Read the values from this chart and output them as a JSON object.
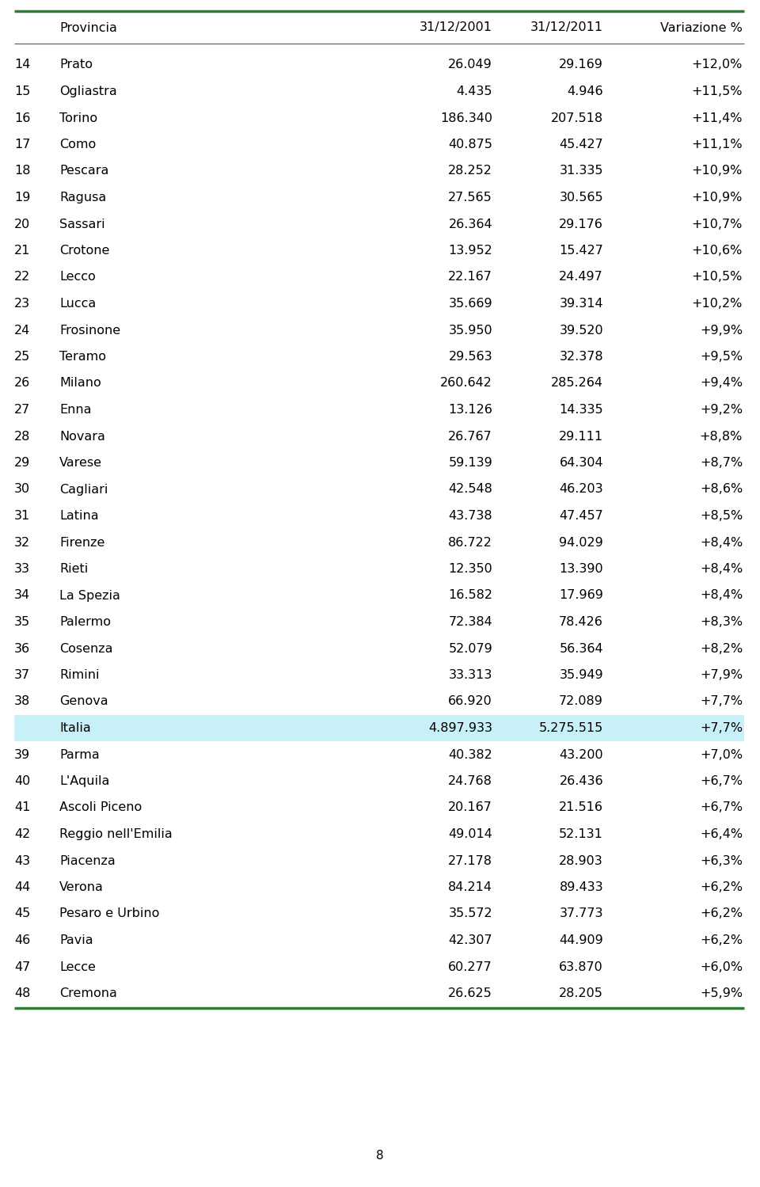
{
  "header": [
    "",
    "Provincia",
    "31/12/2001",
    "31/12/2011",
    "Variazione %"
  ],
  "rows": [
    [
      "14",
      "Prato",
      "26.049",
      "29.169",
      "+12,0%"
    ],
    [
      "15",
      "Ogliastra",
      "4.435",
      "4.946",
      "+11,5%"
    ],
    [
      "16",
      "Torino",
      "186.340",
      "207.518",
      "+11,4%"
    ],
    [
      "17",
      "Como",
      "40.875",
      "45.427",
      "+11,1%"
    ],
    [
      "18",
      "Pescara",
      "28.252",
      "31.335",
      "+10,9%"
    ],
    [
      "19",
      "Ragusa",
      "27.565",
      "30.565",
      "+10,9%"
    ],
    [
      "20",
      "Sassari",
      "26.364",
      "29.176",
      "+10,7%"
    ],
    [
      "21",
      "Crotone",
      "13.952",
      "15.427",
      "+10,6%"
    ],
    [
      "22",
      "Lecco",
      "22.167",
      "24.497",
      "+10,5%"
    ],
    [
      "23",
      "Lucca",
      "35.669",
      "39.314",
      "+10,2%"
    ],
    [
      "24",
      "Frosinone",
      "35.950",
      "39.520",
      "+9,9%"
    ],
    [
      "25",
      "Teramo",
      "29.563",
      "32.378",
      "+9,5%"
    ],
    [
      "26",
      "Milano",
      "260.642",
      "285.264",
      "+9,4%"
    ],
    [
      "27",
      "Enna",
      "13.126",
      "14.335",
      "+9,2%"
    ],
    [
      "28",
      "Novara",
      "26.767",
      "29.111",
      "+8,8%"
    ],
    [
      "29",
      "Varese",
      "59.139",
      "64.304",
      "+8,7%"
    ],
    [
      "30",
      "Cagliari",
      "42.548",
      "46.203",
      "+8,6%"
    ],
    [
      "31",
      "Latina",
      "43.738",
      "47.457",
      "+8,5%"
    ],
    [
      "32",
      "Firenze",
      "86.722",
      "94.029",
      "+8,4%"
    ],
    [
      "33",
      "Rieti",
      "12.350",
      "13.390",
      "+8,4%"
    ],
    [
      "34",
      "La Spezia",
      "16.582",
      "17.969",
      "+8,4%"
    ],
    [
      "35",
      "Palermo",
      "72.384",
      "78.426",
      "+8,3%"
    ],
    [
      "36",
      "Cosenza",
      "52.079",
      "56.364",
      "+8,2%"
    ],
    [
      "37",
      "Rimini",
      "33.313",
      "35.949",
      "+7,9%"
    ],
    [
      "38",
      "Genova",
      "66.920",
      "72.089",
      "+7,7%"
    ],
    [
      "",
      "Italia",
      "4.897.933",
      "5.275.515",
      "+7,7%"
    ],
    [
      "39",
      "Parma",
      "40.382",
      "43.200",
      "+7,0%"
    ],
    [
      "40",
      "L'Aquila",
      "24.768",
      "26.436",
      "+6,7%"
    ],
    [
      "41",
      "Ascoli Piceno",
      "20.167",
      "21.516",
      "+6,7%"
    ],
    [
      "42",
      "Reggio nell'Emilia",
      "49.014",
      "52.131",
      "+6,4%"
    ],
    [
      "43",
      "Piacenza",
      "27.178",
      "28.903",
      "+6,3%"
    ],
    [
      "44",
      "Verona",
      "84.214",
      "89.433",
      "+6,2%"
    ],
    [
      "45",
      "Pesaro e Urbino",
      "35.572",
      "37.773",
      "+6,2%"
    ],
    [
      "46",
      "Pavia",
      "42.307",
      "44.909",
      "+6,2%"
    ],
    [
      "47",
      "Lecce",
      "60.277",
      "63.870",
      "+6,0%"
    ],
    [
      "48",
      "Cremona",
      "26.625",
      "28.205",
      "+5,9%"
    ]
  ],
  "italia_row_idx": 25,
  "italia_bg": "#c8f0f8",
  "header_line_color": "#2e7d32",
  "footer_line_color": "#2e7d32",
  "bg_color": "#ffffff",
  "text_color": "#000000",
  "page_number": "8",
  "font_size": 11.5,
  "header_font_size": 11.5
}
